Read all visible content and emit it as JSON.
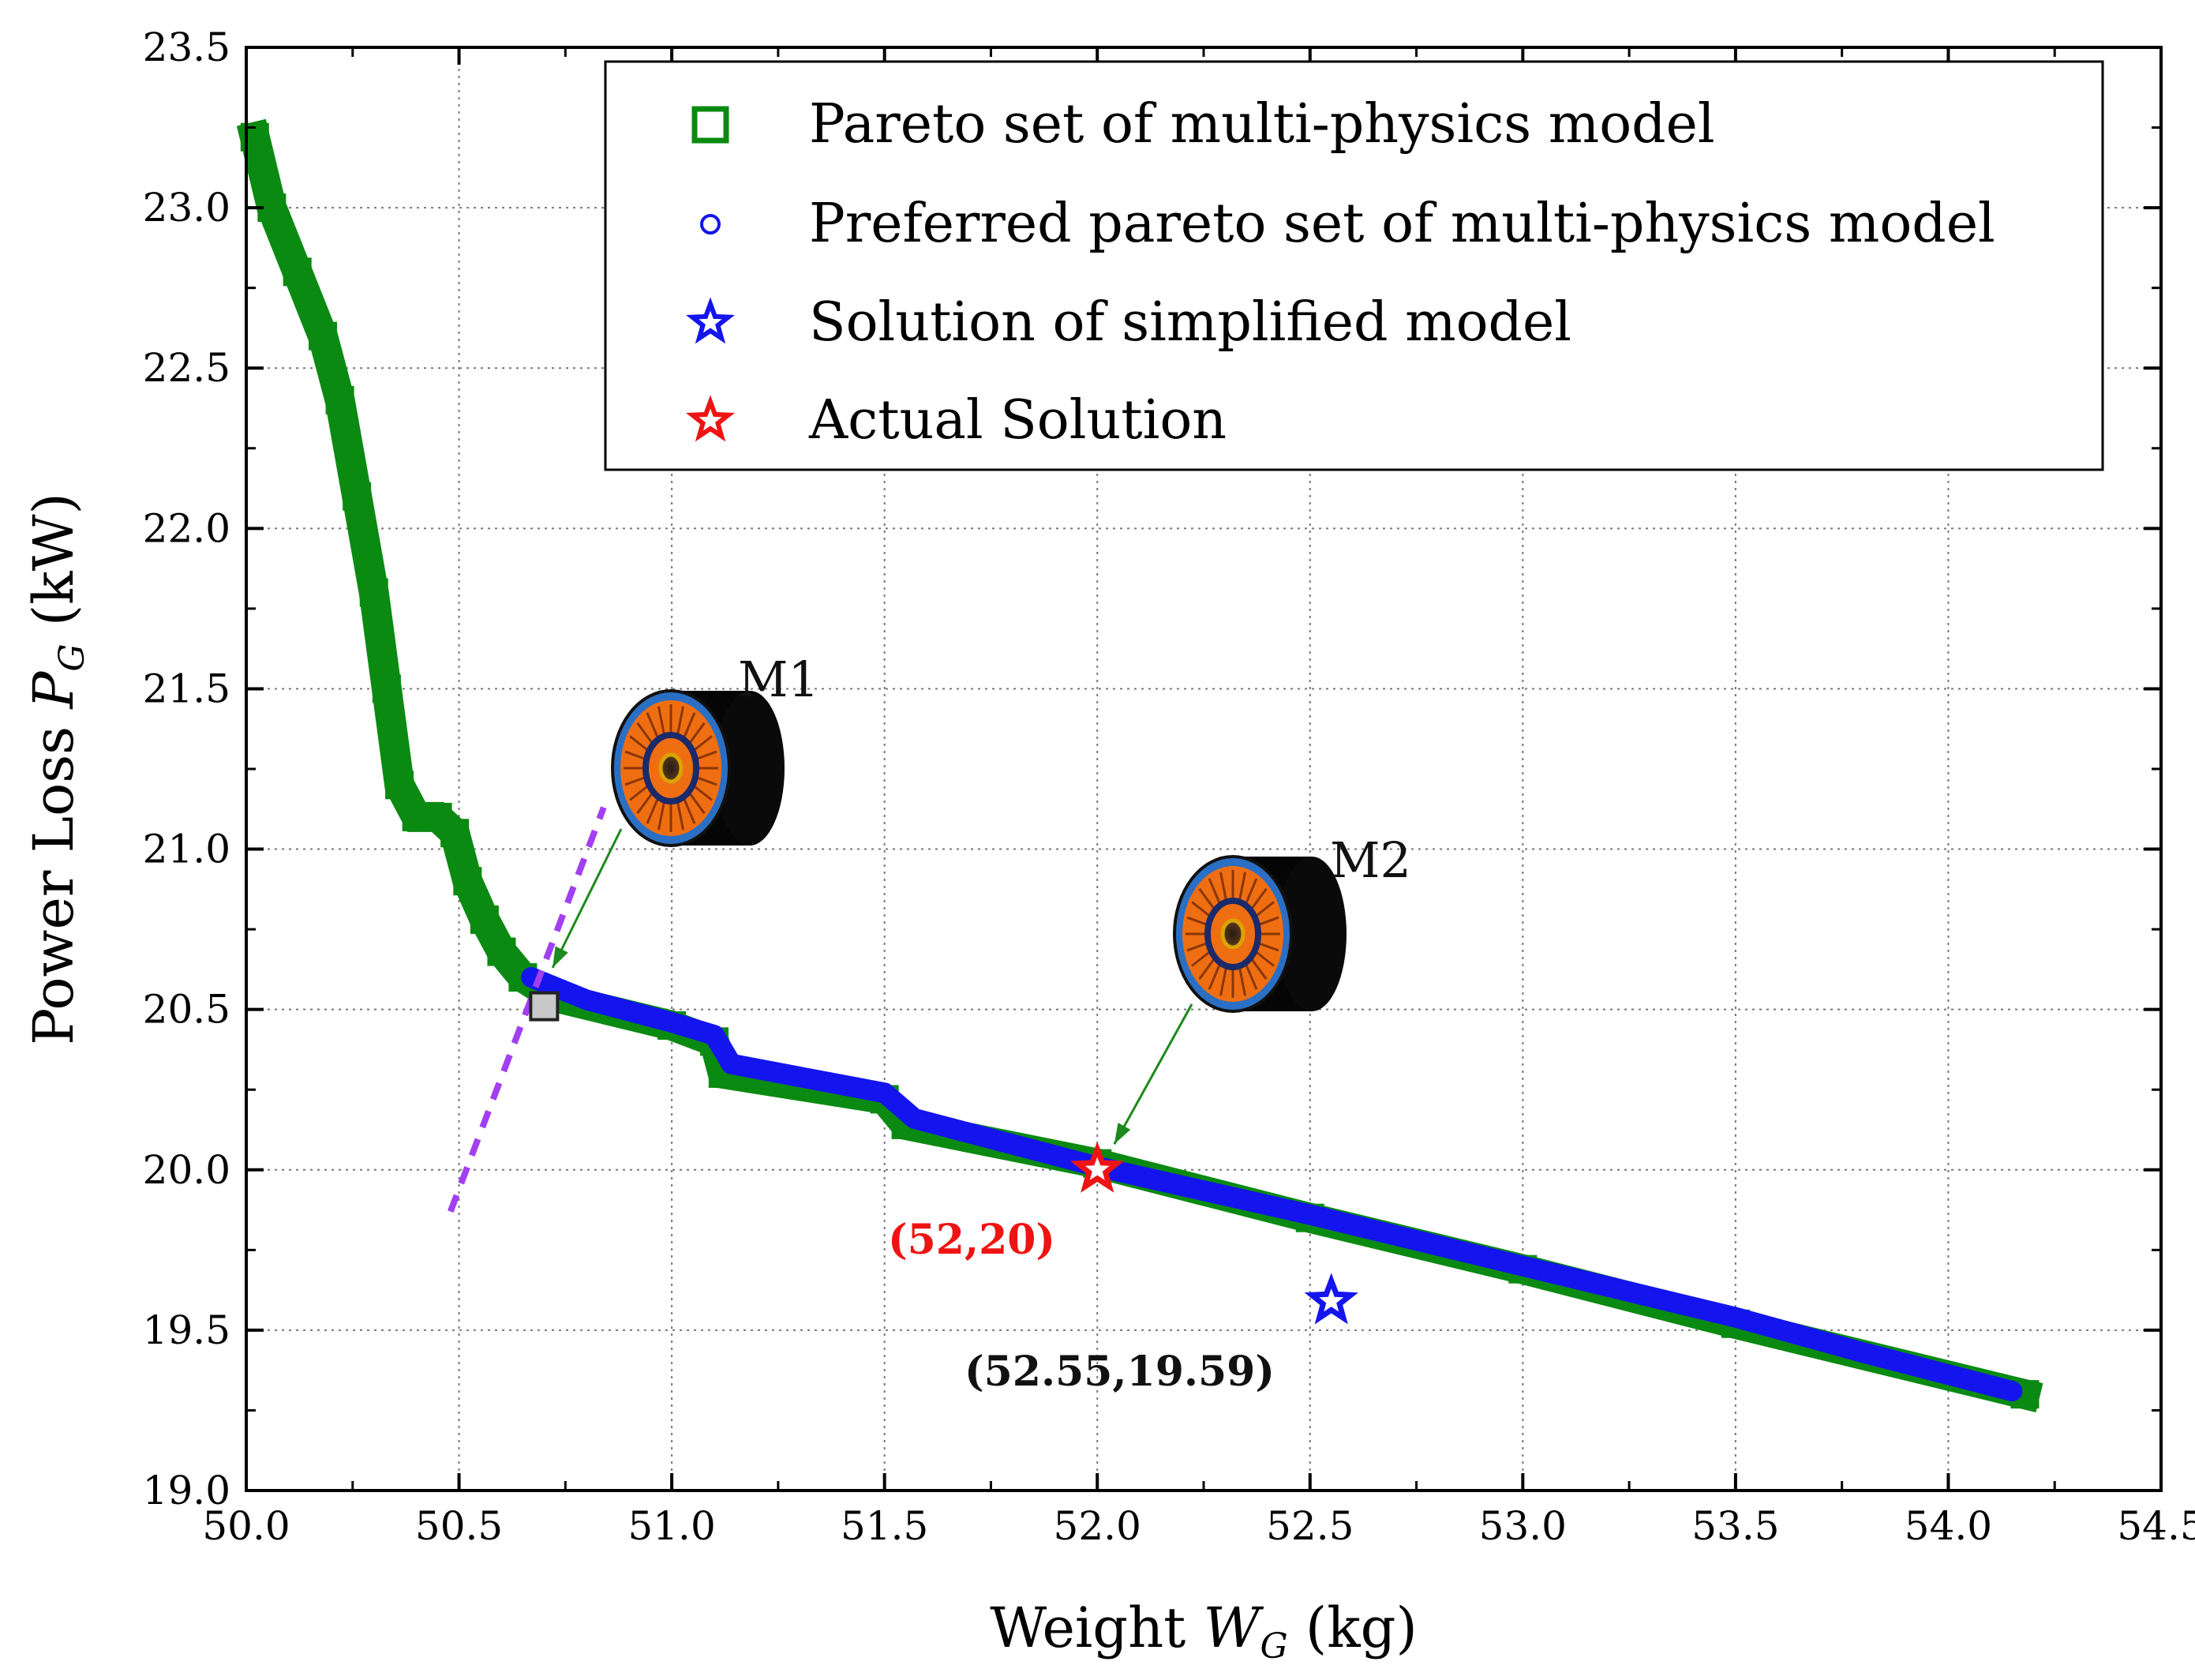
{
  "chart_data": {
    "type": "scatter",
    "xlabel": {
      "main": "Weight ",
      "var": "W",
      "sub": "G",
      "unit": " (kg)"
    },
    "ylabel": {
      "main": "Power Loss ",
      "var": "P",
      "sub": "G",
      "unit": " (kW)"
    },
    "xlim": [
      50.0,
      54.5
    ],
    "ylim": [
      19.0,
      23.5
    ],
    "xticks": [
      "50.0",
      "50.5",
      "51.0",
      "51.5",
      "52.0",
      "52.5",
      "53.0",
      "53.5",
      "54.0",
      "54.5"
    ],
    "yticks": [
      "19.0",
      "19.5",
      "20.0",
      "20.5",
      "21.0",
      "21.5",
      "22.0",
      "22.5",
      "23.0",
      "23.5"
    ],
    "grid": true,
    "legend_position": "top-right",
    "series": [
      {
        "name": "Pareto set of multi-physics model",
        "marker": "square",
        "color": "#0b8a12",
        "points": [
          [
            50.02,
            23.22
          ],
          [
            50.06,
            23.0
          ],
          [
            50.12,
            22.8
          ],
          [
            50.18,
            22.6
          ],
          [
            50.22,
            22.4
          ],
          [
            50.26,
            22.1
          ],
          [
            50.3,
            21.8
          ],
          [
            50.33,
            21.5
          ],
          [
            50.36,
            21.2
          ],
          [
            50.4,
            21.1
          ],
          [
            50.45,
            21.1
          ],
          [
            50.49,
            21.05
          ],
          [
            50.52,
            20.9
          ],
          [
            50.56,
            20.78
          ],
          [
            50.6,
            20.68
          ],
          [
            50.65,
            20.6
          ],
          [
            50.72,
            20.54
          ],
          [
            51.0,
            20.45
          ],
          [
            51.1,
            20.4
          ],
          [
            51.12,
            20.3
          ],
          [
            51.5,
            20.22
          ],
          [
            51.55,
            20.14
          ],
          [
            52.0,
            20.02
          ],
          [
            52.5,
            19.85
          ],
          [
            53.0,
            19.69
          ],
          [
            53.5,
            19.52
          ],
          [
            54.18,
            19.3
          ]
        ]
      },
      {
        "name": "Preferred pareto set of multi-physics model",
        "marker": "circle",
        "color": "#1414ee",
        "points": [
          [
            50.67,
            20.6
          ],
          [
            50.8,
            20.53
          ],
          [
            51.0,
            20.46
          ],
          [
            51.1,
            20.42
          ],
          [
            51.14,
            20.33
          ],
          [
            51.5,
            20.24
          ],
          [
            51.57,
            20.16
          ],
          [
            52.0,
            20.01
          ],
          [
            52.5,
            19.86
          ],
          [
            53.0,
            19.7
          ],
          [
            53.5,
            19.54
          ],
          [
            53.8,
            19.43
          ],
          [
            54.15,
            19.31
          ]
        ]
      },
      {
        "name": "Solution of simplified model",
        "marker": "star",
        "color": "#1414ee",
        "points": [
          [
            52.55,
            19.59
          ]
        ]
      },
      {
        "name": "Actual Solution",
        "marker": "star",
        "color": "#ee1414",
        "points": [
          [
            52.0,
            20.0
          ]
        ]
      }
    ],
    "annotations": [
      {
        "id": "a1",
        "text": "(52,20)",
        "color": "#ee1414",
        "bold": true
      },
      {
        "id": "a2",
        "text": "(52.55,19.59)",
        "color": "#111111",
        "bold": true
      },
      {
        "id": "m1",
        "text": "M1",
        "color": "#111111",
        "bold": false
      },
      {
        "id": "m2",
        "text": "M2",
        "color": "#111111",
        "bold": false
      }
    ],
    "dashed_line": {
      "color": "#a23ff0",
      "from": [
        50.48,
        19.87
      ],
      "to": [
        50.84,
        21.13
      ]
    },
    "gray_marker": {
      "x": 50.7,
      "y": 20.51
    },
    "motor_pointers": [
      {
        "label": "M1",
        "to": [
          50.72,
          20.63
        ]
      },
      {
        "label": "M2",
        "to": [
          52.04,
          20.08
        ]
      }
    ]
  }
}
